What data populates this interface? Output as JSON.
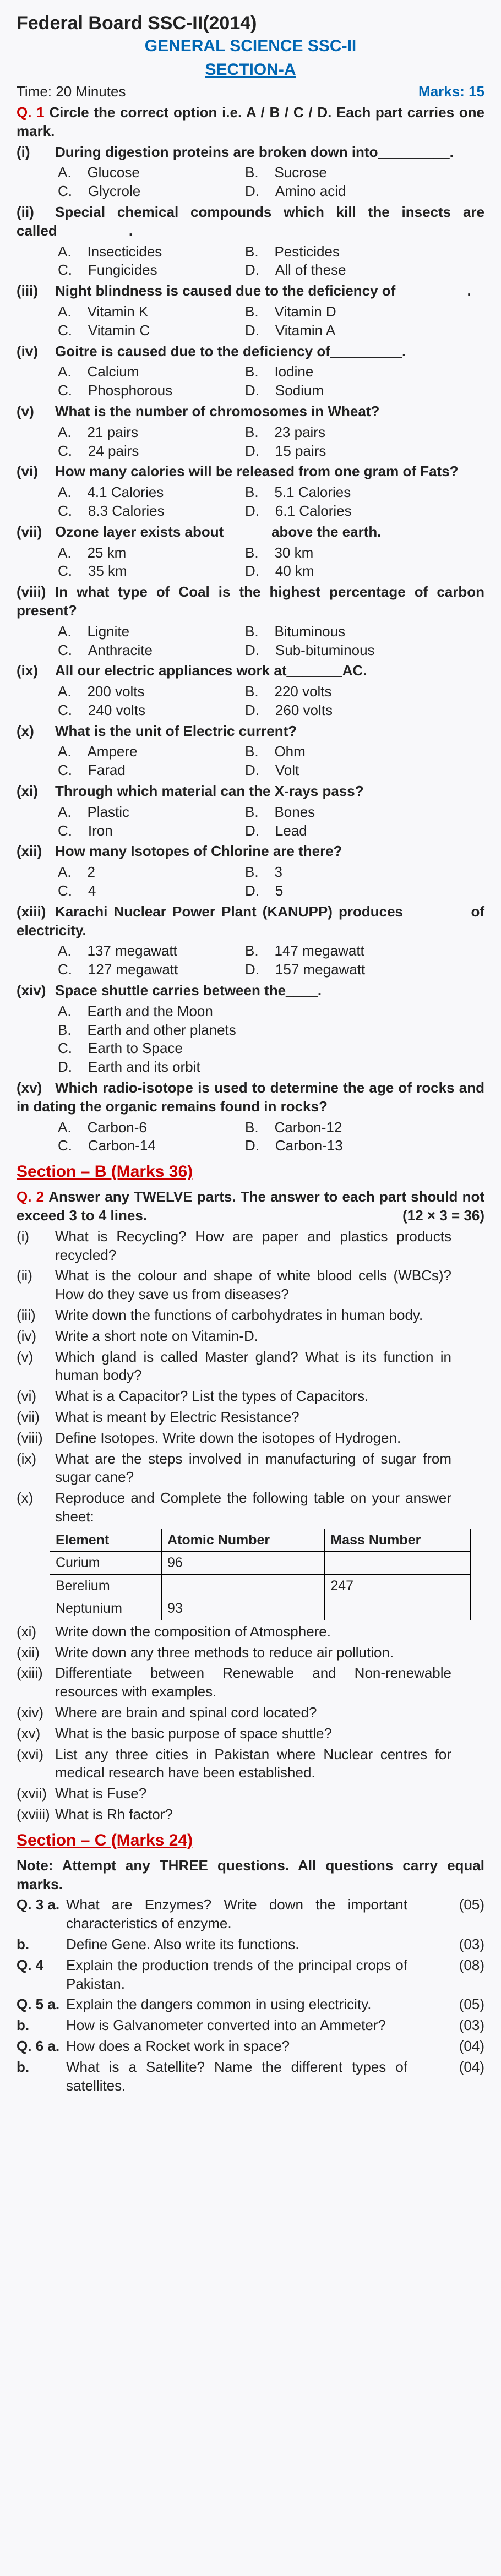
{
  "header": {
    "title": "Federal Board SSC-II(2014)",
    "subtitle": "GENERAL SCIENCE SSC-II",
    "sectionA": "SECTION-A",
    "time": "Time: 20 Minutes",
    "marks": "Marks: 15"
  },
  "q1head": "Q. 1",
  "q1text": "Circle the correct option i.e. A / B / C / D. Each part carries one mark.",
  "mcq": [
    {
      "n": "(i)",
      "q": "During digestion proteins are broken down into_________.",
      "a": "Glucose",
      "b": "Sucrose",
      "c": "Glycrole",
      "d": "Amino acid"
    },
    {
      "n": "(ii)",
      "q": "Special chemical compounds which kill the insects are called_________.",
      "a": "Insecticides",
      "b": "Pesticides",
      "c": "Fungicides",
      "d": "All of these"
    },
    {
      "n": "(iii)",
      "q": "Night blindness is caused due to the deficiency of_________.",
      "a": "Vitamin K",
      "b": "Vitamin D",
      "c": "Vitamin C",
      "d": "Vitamin A"
    },
    {
      "n": "(iv)",
      "q": "Goitre is caused due to the deficiency of_________.",
      "a": "Calcium",
      "b": "Iodine",
      "c": "Phosphorous",
      "d": "Sodium"
    },
    {
      "n": "(v)",
      "q": "What is the number of chromosomes in Wheat?",
      "a": "21 pairs",
      "b": "23 pairs",
      "c": "24 pairs",
      "d": "15 pairs"
    },
    {
      "n": "(vi)",
      "q": "How many calories will be released from one gram of Fats?",
      "a": "4.1 Calories",
      "b": "5.1 Calories",
      "c": "8.3 Calories",
      "d": "6.1 Calories"
    },
    {
      "n": "(vii)",
      "q": "Ozone layer exists about______above the earth.",
      "a": "25 km",
      "b": "30 km",
      "c": "35 km",
      "d": "40 km"
    },
    {
      "n": "(viii)",
      "q": "In what type of Coal is the highest percentage of carbon present?",
      "a": "Lignite",
      "b": "Bituminous",
      "c": "Anthracite",
      "d": "Sub-bituminous"
    },
    {
      "n": "(ix)",
      "q": "All our electric appliances work at_______AC.",
      "a": "200 volts",
      "b": "220 volts",
      "c": "240 volts",
      "d": "260 volts"
    },
    {
      "n": "(x)",
      "q": "What is the unit of Electric current?",
      "a": "Ampere",
      "b": "Ohm",
      "c": "Farad",
      "d": "Volt"
    },
    {
      "n": "(xi)",
      "q": "Through which material can the X-rays pass?",
      "a": "Plastic",
      "b": "Bones",
      "c": "Iron",
      "d": "Lead"
    },
    {
      "n": "(xii)",
      "q": "How many Isotopes of Chlorine are there?",
      "a": "2",
      "b": "3",
      "c": "4",
      "d": "5"
    },
    {
      "n": "(xiii)",
      "q": "Karachi Nuclear Power Plant (KANUPP) produces _______ of electricity.",
      "a": "137 megawatt",
      "b": "147 megawatt",
      "c": "127 megawatt",
      "d": "157 megawatt"
    },
    {
      "n": "(xiv)",
      "q": "Space shuttle carries between the____.",
      "full": true,
      "a": "Earth and the Moon",
      "b": "Earth and other planets",
      "c": "Earth to Space",
      "d": "Earth and its orbit"
    },
    {
      "n": "(xv)",
      "q": "Which radio-isotope is used to determine the age of rocks and in dating the organic remains found in rocks?",
      "a": "Carbon-6",
      "b": "Carbon-12",
      "c": "Carbon-14",
      "d": "Carbon-13"
    }
  ],
  "sectionB": "Section – B (Marks 36)",
  "q2head": "Q. 2",
  "q2text": "Answer any TWELVE parts. The answer to each part should not exceed 3 to 4 lines.",
  "q2marks": "(12 × 3 = 36)",
  "short": [
    {
      "n": "(i)",
      "q": "What is Recycling? How are paper and plastics products recycled?"
    },
    {
      "n": "(ii)",
      "q": "What is the colour and shape of white blood cells (WBCs)? How do they save us from diseases?"
    },
    {
      "n": "(iii)",
      "q": "Write down the functions of carbohydrates in human body."
    },
    {
      "n": "(iv)",
      "q": "Write a short note on Vitamin-D."
    },
    {
      "n": "(v)",
      "q": "Which gland is called Master gland? What is its function in human body?"
    },
    {
      "n": "(vi)",
      "q": "What is a Capacitor? List the types of Capacitors."
    },
    {
      "n": "(vii)",
      "q": "What is meant by Electric Resistance?"
    },
    {
      "n": "(viii)",
      "q": "Define Isotopes. Write down the isotopes of Hydrogen."
    },
    {
      "n": "(ix)",
      "q": "What are the steps involved in manufacturing of sugar from sugar cane?"
    },
    {
      "n": "(x)",
      "q": "Reproduce and Complete the following table on your answer sheet:"
    }
  ],
  "table": {
    "h1": "Element",
    "h2": "Atomic Number",
    "h3": "Mass Number",
    "rows": [
      [
        "Curium",
        "96",
        ""
      ],
      [
        "Berelium",
        "",
        "247"
      ],
      [
        "Neptunium",
        "93",
        ""
      ]
    ]
  },
  "short2": [
    {
      "n": "(xi)",
      "q": "Write down the composition of Atmosphere."
    },
    {
      "n": "(xii)",
      "q": "Write down any three methods to reduce air pollution."
    },
    {
      "n": "(xiii)",
      "q": "Differentiate between Renewable and Non-renewable resources with examples."
    },
    {
      "n": "(xiv)",
      "q": "Where are brain and spinal cord located?"
    },
    {
      "n": "(xv)",
      "q": "What is the basic purpose of space shuttle?"
    },
    {
      "n": "(xvi)",
      "q": "List any three cities in Pakistan where Nuclear centres for medical research have been established."
    },
    {
      "n": "(xvii)",
      "q": "What is Fuse?"
    },
    {
      "n": "(xviii)",
      "q": "What is Rh factor?"
    }
  ],
  "sectionC": "Section – C (Marks 24)",
  "noteC": "Note: Attempt any THREE questions. All questions carry equal marks.",
  "long": [
    {
      "n": "Q. 3 a.",
      "q": "What are Enzymes? Write down the important characteristics of enzyme.",
      "m": "(05)"
    },
    {
      "n": "b.",
      "q": "Define Gene. Also write its functions.",
      "m": "(03)"
    },
    {
      "n": "Q. 4",
      "q": "Explain the production trends of the principal crops of Pakistan.",
      "m": "(08)"
    },
    {
      "n": "Q. 5 a.",
      "q": "Explain the dangers common in using electricity.",
      "m": "(05)"
    },
    {
      "n": "b.",
      "q": "How is Galvanometer converted into an Ammeter?",
      "m": "(03)"
    },
    {
      "n": "Q. 6 a.",
      "q": "How does a Rocket work in space?",
      "m": "(04)"
    },
    {
      "n": "b.",
      "q": "What is a Satellite? Name the different types of satellites.",
      "m": "(04)"
    }
  ]
}
